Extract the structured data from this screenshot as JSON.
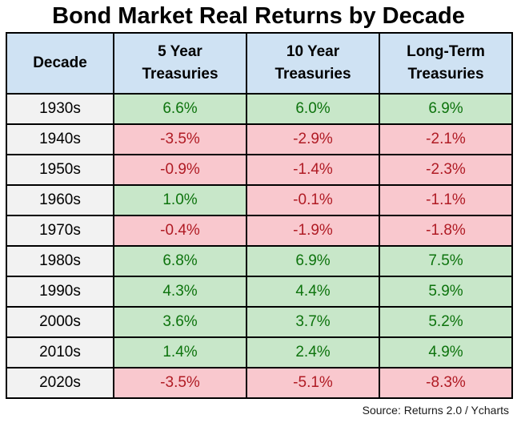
{
  "title": "Bond Market Real Returns by Decade",
  "source": "Source: Returns 2.0 / Ycharts",
  "colors": {
    "header_bg": "#cfe2f3",
    "decade_col_bg": "#f2f2f2",
    "positive_bg": "#c8e7c9",
    "positive_text": "#0d730d",
    "negative_bg": "#f9c8ce",
    "negative_text": "#b01b24",
    "border": "#000000",
    "title_text": "#000000"
  },
  "columns": [
    "Decade",
    "5 Year Treasuries",
    "10 Year Treasuries",
    "Long-Term Treasuries"
  ],
  "rows": [
    {
      "decade": "1930s",
      "v1": "6.6%",
      "s1": "pos",
      "v2": "6.0%",
      "s2": "pos",
      "v3": "6.9%",
      "s3": "pos"
    },
    {
      "decade": "1940s",
      "v1": "-3.5%",
      "s1": "neg",
      "v2": "-2.9%",
      "s2": "neg",
      "v3": "-2.1%",
      "s3": "neg"
    },
    {
      "decade": "1950s",
      "v1": "-0.9%",
      "s1": "neg",
      "v2": "-1.4%",
      "s2": "neg",
      "v3": "-2.3%",
      "s3": "neg"
    },
    {
      "decade": "1960s",
      "v1": "1.0%",
      "s1": "pos",
      "v2": "-0.1%",
      "s2": "neg",
      "v3": "-1.1%",
      "s3": "neg"
    },
    {
      "decade": "1970s",
      "v1": "-0.4%",
      "s1": "neg",
      "v2": "-1.9%",
      "s2": "neg",
      "v3": "-1.8%",
      "s3": "neg"
    },
    {
      "decade": "1980s",
      "v1": "6.8%",
      "s1": "pos",
      "v2": "6.9%",
      "s2": "pos",
      "v3": "7.5%",
      "s3": "pos"
    },
    {
      "decade": "1990s",
      "v1": "4.3%",
      "s1": "pos",
      "v2": "4.4%",
      "s2": "pos",
      "v3": "5.9%",
      "s3": "pos"
    },
    {
      "decade": "2000s",
      "v1": "3.6%",
      "s1": "pos",
      "v2": "3.7%",
      "s2": "pos",
      "v3": "5.2%",
      "s3": "pos"
    },
    {
      "decade": "2010s",
      "v1": "1.4%",
      "s1": "pos",
      "v2": "2.4%",
      "s2": "pos",
      "v3": "4.9%",
      "s3": "pos"
    },
    {
      "decade": "2020s",
      "v1": "-3.5%",
      "s1": "neg",
      "v2": "-5.1%",
      "s2": "neg",
      "v3": "-8.3%",
      "s3": "neg"
    }
  ],
  "chart_data": {
    "type": "table",
    "title": "Bond Market Real Returns by Decade",
    "categories": [
      "1930s",
      "1940s",
      "1950s",
      "1960s",
      "1970s",
      "1980s",
      "1990s",
      "2000s",
      "2010s",
      "2020s"
    ],
    "series": [
      {
        "name": "5 Year Treasuries",
        "values": [
          6.6,
          -3.5,
          -0.9,
          1.0,
          -0.4,
          6.8,
          4.3,
          3.6,
          1.4,
          -3.5
        ]
      },
      {
        "name": "10 Year Treasuries",
        "values": [
          6.0,
          -2.9,
          -1.4,
          -0.1,
          -1.9,
          6.9,
          4.4,
          3.7,
          2.4,
          -5.1
        ]
      },
      {
        "name": "Long-Term Treasuries",
        "values": [
          6.9,
          -2.1,
          -2.3,
          -1.1,
          -1.8,
          7.5,
          5.9,
          5.2,
          4.9,
          -8.3
        ]
      }
    ],
    "unit": "%",
    "value_color_rule": "green if >= 0, red if < 0",
    "source": "Source: Returns 2.0 / Ycharts"
  }
}
